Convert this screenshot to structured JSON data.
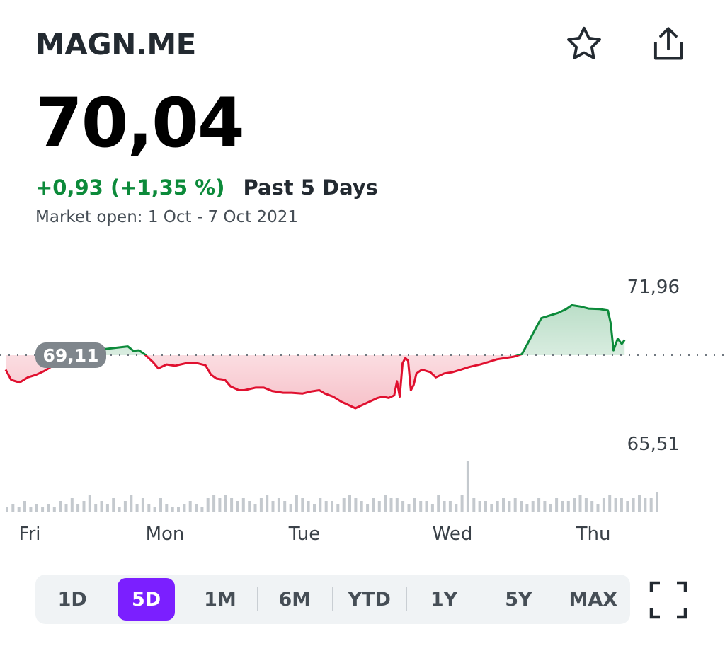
{
  "header": {
    "ticker": "MAGN.ME",
    "star_icon": "star-outline-icon",
    "share_icon": "share-icon"
  },
  "quote": {
    "price": "70,04",
    "change": "+0,93 (+1,35 %)",
    "period": "Past 5 Days",
    "market_status": "Market open: 1 Oct - 7 Oct 2021"
  },
  "chart_data": {
    "type": "line",
    "title": "",
    "reference_label": "69,11",
    "reference_value": 69.11,
    "high_label": "71,96",
    "low_label": "65,51",
    "ylim": [
      65.0,
      72.6
    ],
    "grid": false,
    "colors": {
      "above": "#0c8a3a",
      "below": "#e0102f"
    },
    "x_labels": [
      "Fri",
      "Mon",
      "Tue",
      "Wed",
      "Thu"
    ],
    "x_days": [
      0,
      1,
      2,
      3,
      4
    ],
    "price_series": [
      [
        0.0,
        68.55
      ],
      [
        0.04,
        68.15
      ],
      [
        0.1,
        68.05
      ],
      [
        0.16,
        68.25
      ],
      [
        0.22,
        68.35
      ],
      [
        0.28,
        68.5
      ],
      [
        0.34,
        68.7
      ],
      [
        0.4,
        68.9
      ],
      [
        0.48,
        68.95
      ],
      [
        0.56,
        69.05
      ],
      [
        0.62,
        69.2
      ],
      [
        0.66,
        69.45
      ],
      [
        0.72,
        69.35
      ],
      [
        0.8,
        69.4
      ],
      [
        0.88,
        69.45
      ],
      [
        0.92,
        69.28
      ],
      [
        0.96,
        69.3
      ],
      [
        1.0,
        69.15
      ],
      [
        1.06,
        68.85
      ],
      [
        1.1,
        68.6
      ],
      [
        1.16,
        68.75
      ],
      [
        1.22,
        68.7
      ],
      [
        1.3,
        68.8
      ],
      [
        1.38,
        68.8
      ],
      [
        1.44,
        68.72
      ],
      [
        1.48,
        68.35
      ],
      [
        1.52,
        68.2
      ],
      [
        1.58,
        68.15
      ],
      [
        1.62,
        67.9
      ],
      [
        1.68,
        67.75
      ],
      [
        1.72,
        67.75
      ],
      [
        1.8,
        67.85
      ],
      [
        1.86,
        67.85
      ],
      [
        1.92,
        67.72
      ],
      [
        2.0,
        67.65
      ],
      [
        2.06,
        67.65
      ],
      [
        2.14,
        67.62
      ],
      [
        2.2,
        67.7
      ],
      [
        2.26,
        67.75
      ],
      [
        2.3,
        67.62
      ],
      [
        2.36,
        67.5
      ],
      [
        2.42,
        67.3
      ],
      [
        2.48,
        67.15
      ],
      [
        2.52,
        67.05
      ],
      [
        2.56,
        67.15
      ],
      [
        2.62,
        67.3
      ],
      [
        2.68,
        67.45
      ],
      [
        2.72,
        67.5
      ],
      [
        2.76,
        67.45
      ],
      [
        2.8,
        67.55
      ],
      [
        2.82,
        68.1
      ],
      [
        2.84,
        67.5
      ],
      [
        2.86,
        68.8
      ],
      [
        2.88,
        69.0
      ],
      [
        2.9,
        68.9
      ],
      [
        2.92,
        67.75
      ],
      [
        2.94,
        67.95
      ],
      [
        2.96,
        68.4
      ],
      [
        3.0,
        68.55
      ],
      [
        3.06,
        68.45
      ],
      [
        3.1,
        68.25
      ],
      [
        3.16,
        68.4
      ],
      [
        3.22,
        68.45
      ],
      [
        3.28,
        68.55
      ],
      [
        3.34,
        68.65
      ],
      [
        3.42,
        68.75
      ],
      [
        3.48,
        68.85
      ],
      [
        3.54,
        68.95
      ],
      [
        3.6,
        69.0
      ],
      [
        3.66,
        69.05
      ],
      [
        3.72,
        69.15
      ],
      [
        3.76,
        69.55
      ],
      [
        3.82,
        70.15
      ],
      [
        3.86,
        70.55
      ],
      [
        3.92,
        70.65
      ],
      [
        3.98,
        70.75
      ],
      [
        4.04,
        70.9
      ],
      [
        4.08,
        71.05
      ],
      [
        4.14,
        71.0
      ],
      [
        4.2,
        70.92
      ],
      [
        4.28,
        70.9
      ],
      [
        4.34,
        70.85
      ],
      [
        4.36,
        70.35
      ],
      [
        4.38,
        69.3
      ],
      [
        4.41,
        69.75
      ],
      [
        4.44,
        69.55
      ],
      [
        4.46,
        69.7
      ]
    ],
    "volume_bars": [
      2,
      3,
      2,
      4,
      2,
      3,
      2,
      3,
      2,
      4,
      3,
      5,
      3,
      4,
      6,
      3,
      4,
      3,
      5,
      2,
      4,
      6,
      3,
      5,
      3,
      2,
      5,
      3,
      2,
      2,
      3,
      4,
      3,
      2,
      5,
      6,
      5,
      6,
      5,
      4,
      5,
      4,
      3,
      5,
      6,
      4,
      5,
      4,
      3,
      6,
      5,
      4,
      3,
      5,
      4,
      4,
      3,
      5,
      6,
      5,
      4,
      3,
      5,
      4,
      6,
      5,
      5,
      4,
      3,
      5,
      4,
      4,
      3,
      6,
      4,
      4,
      3,
      6,
      18,
      5,
      4,
      4,
      3,
      4,
      5,
      4,
      5,
      4,
      3,
      4,
      5,
      4,
      3,
      5,
      4,
      4,
      5,
      6,
      5,
      4,
      3,
      5,
      6,
      5,
      5,
      4,
      5,
      6,
      5,
      5,
      7
    ]
  },
  "ranges": {
    "items": [
      "1D",
      "5D",
      "1M",
      "6M",
      "YTD",
      "1Y",
      "5Y",
      "MAX"
    ],
    "active": "5D"
  },
  "expand_icon": "fullscreen-icon"
}
